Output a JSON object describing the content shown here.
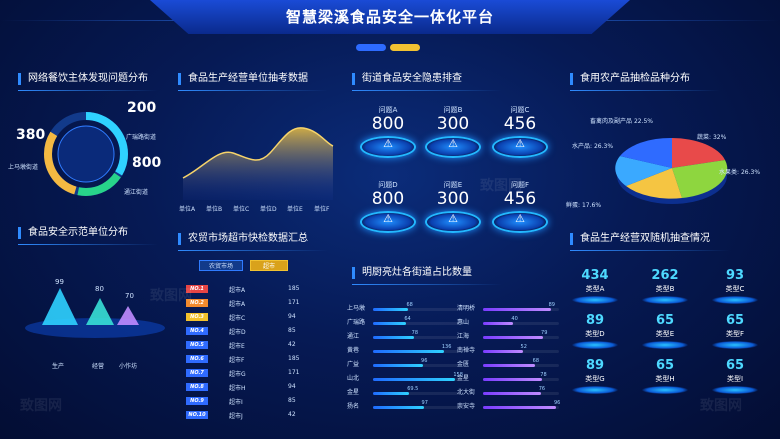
{
  "header": {
    "title": "智慧梁溪食品安全一体化平台"
  },
  "watermark": "致图网",
  "panels": {
    "catering": {
      "title": "网络餐饮主体发现问题分布",
      "items": [
        {
          "value": "380",
          "label": "上马墩街道"
        },
        {
          "value": "200",
          "label": "广瑞路街道"
        },
        {
          "value": "800",
          "label": "通江街道"
        }
      ]
    },
    "sampling": {
      "title": "食品生产经营单位抽考数据",
      "categories": [
        "单位A",
        "单位B",
        "单位C",
        "单位D",
        "单位E",
        "单位F"
      ]
    },
    "hazard": {
      "title": "街道食品安全隐患排查",
      "items": [
        {
          "label": "问题A",
          "value": "800"
        },
        {
          "label": "问题B",
          "value": "300"
        },
        {
          "label": "问题C",
          "value": "456"
        },
        {
          "label": "问题D",
          "value": "800"
        },
        {
          "label": "问题E",
          "value": "300"
        },
        {
          "label": "问题F",
          "value": "456"
        }
      ]
    },
    "produce": {
      "title": "食用农产品抽检品种分布",
      "slices": [
        {
          "label": "畜禽肉及副产品",
          "pct": "22.5%",
          "value": 22.5,
          "color": "#2f7bff"
        },
        {
          "label": "蔬菜",
          "pct": "32%",
          "value": 32,
          "color": "#e84a4a"
        },
        {
          "label": "水果类",
          "pct": "26.3%",
          "value": 26.3,
          "color": "#2bb673"
        },
        {
          "label": "鲜蛋",
          "pct": "17.6%",
          "value": 17.6,
          "color": "#f5c542"
        },
        {
          "label": "水产品",
          "pct": "26.3%",
          "value": 26.3,
          "color": "#3aa9ff"
        }
      ]
    },
    "demo": {
      "title": "食品安全示范单位分布",
      "items": [
        {
          "label": "生产",
          "value": "99",
          "color": "#2fd2ff"
        },
        {
          "label": "经营",
          "value": "80",
          "color": "#38e0d6"
        },
        {
          "label": "小作坊",
          "value": "70",
          "color": "#c08cff"
        }
      ]
    },
    "market": {
      "title": "农贸市场超市快检数据汇总",
      "tabs": [
        "农贸市场",
        "超市"
      ],
      "rows": [
        {
          "rank": "NO.1",
          "name": "超市A",
          "value": "185"
        },
        {
          "rank": "NO.2",
          "name": "超市A",
          "value": "171"
        },
        {
          "rank": "NO.3",
          "name": "超市C",
          "value": "94"
        },
        {
          "rank": "NO.4",
          "name": "超市D",
          "value": "85"
        },
        {
          "rank": "NO.5",
          "name": "超市E",
          "value": "42"
        },
        {
          "rank": "NO.6",
          "name": "超市F",
          "value": "185"
        },
        {
          "rank": "NO.7",
          "name": "超市G",
          "value": "171"
        },
        {
          "rank": "NO.8",
          "name": "超市H",
          "value": "94"
        },
        {
          "rank": "NO.9",
          "name": "超市I",
          "value": "85"
        },
        {
          "rank": "NO.10",
          "name": "超市J",
          "value": "42"
        }
      ]
    },
    "kitchen": {
      "title": "明厨亮灶各街道占比数量",
      "left": [
        {
          "name": "上马墩",
          "value": "68"
        },
        {
          "name": "广瑞路",
          "value": "64"
        },
        {
          "name": "通江",
          "value": "78"
        },
        {
          "name": "黄巷",
          "value": "136"
        },
        {
          "name": "广益",
          "value": "96"
        },
        {
          "name": "山北",
          "value": "158"
        },
        {
          "name": "金星",
          "value": "69.5"
        },
        {
          "name": "扬名",
          "value": "97"
        }
      ],
      "right": [
        {
          "name": "清明桥",
          "value": "89"
        },
        {
          "name": "惠山",
          "value": "40"
        },
        {
          "name": "江海",
          "value": "79"
        },
        {
          "name": "南禅寺",
          "value": "52"
        },
        {
          "name": "金匮",
          "value": "68"
        },
        {
          "name": "金星",
          "value": "78"
        },
        {
          "name": "北大街",
          "value": "76"
        },
        {
          "name": "崇安寺",
          "value": "96"
        }
      ]
    },
    "random": {
      "title": "食品生产经营双随机抽查情况",
      "tiles": [
        {
          "value": "434",
          "label": "类型A"
        },
        {
          "value": "262",
          "label": "类型B"
        },
        {
          "value": "93",
          "label": "类型C"
        },
        {
          "value": "89",
          "label": "类型D"
        },
        {
          "value": "65",
          "label": "类型E"
        },
        {
          "value": "65",
          "label": "类型F"
        },
        {
          "value": "89",
          "label": "类型G"
        },
        {
          "value": "65",
          "label": "类型H"
        },
        {
          "value": "65",
          "label": "类型I"
        }
      ]
    }
  }
}
